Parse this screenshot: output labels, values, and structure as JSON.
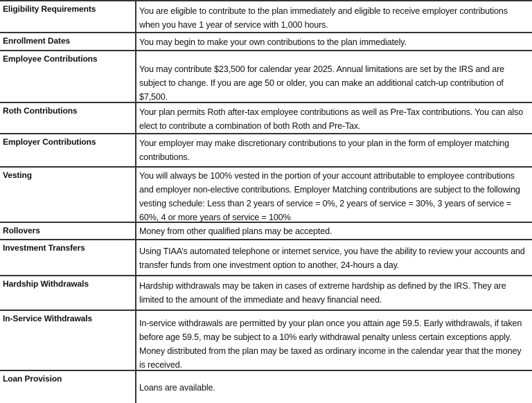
{
  "rows": [
    {
      "label": "Eligibility Requirements",
      "text": "You are eligible to contribute to the plan immediately and eligible to receive employer contributions when you have 1 year of service with 1,000 hours."
    },
    {
      "label": "Enrollment Dates",
      "text": "You may begin to make your own contributions to the plan immediately."
    },
    {
      "label": "Employee Contributions",
      "text": "You may contribute $23,500 for calendar year 2025. Annual limitations are set by the IRS and are subject to change. If you are age 50 or older, you can make an additional catch-up contribution of $7,500."
    },
    {
      "label": "Roth Contributions",
      "text": "Your plan permits Roth after-tax employee contributions as well as Pre-Tax contributions. You can also elect to contribute a combination of both Roth and Pre-Tax."
    },
    {
      "label": "Employer Contributions",
      "text": "Your employer may make discretionary contributions to your plan in the form of employer matching contributions."
    },
    {
      "label": "Vesting",
      "text": "You will always be 100% vested in the portion of your account attributable to employee contributions and employer non-elective contributions. Employer Matching contributions are subject to the following vesting schedule: Less than 2 years of service = 0%, 2 years of service = 30%, 3 years of service = 60%, 4 or more years of service = 100%"
    },
    {
      "label": "Rollovers",
      "text": "Money from other qualified plans may be accepted."
    },
    {
      "label": "Investment Transfers",
      "text": "Using TIAA’s automated telephone or internet service, you have the ability to review your accounts and transfer funds from one investment option to another, 24-hours a day."
    },
    {
      "label": "Hardship Withdrawals",
      "text": "Hardship withdrawals may be taken in cases of extreme hardship as defined by the IRS. They are limited to the amount of the immediate and heavy financial need."
    },
    {
      "label": "In-Service Withdrawals",
      "text": "In-service withdrawals are permitted by your plan once you attain age 59.5. Early withdrawals, if taken before age 59.5, may be subject to a 10% early withdrawal penalty unless certain exceptions apply. Money distributed from the plan may be taxed as ordinary income in the calendar year that the money is received."
    },
    {
      "label": "Loan Provision",
      "text": "Loans are available."
    }
  ]
}
